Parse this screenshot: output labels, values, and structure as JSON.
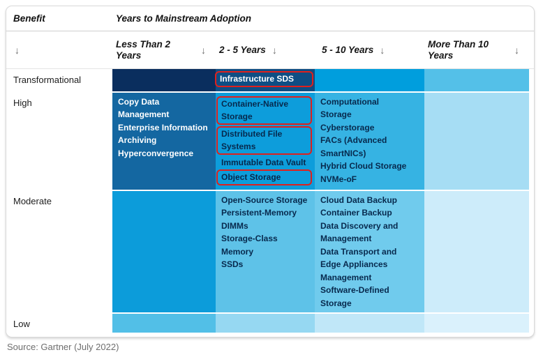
{
  "header": {
    "benefit_label": "Benefit",
    "adoption_label": "Years to Mainstream Adoption",
    "benefit_arrow": "↓"
  },
  "matrix": {
    "columns": [
      {
        "label": "Less Than 2 Years",
        "arrow": "↓"
      },
      {
        "label": "2 - 5 Years",
        "arrow": "↓"
      },
      {
        "label": "5 - 10 Years",
        "arrow": "↓"
      },
      {
        "label": "More Than 10 Years",
        "arrow": "↓"
      }
    ],
    "rows": [
      {
        "id": "transformational",
        "label": "Transformational",
        "cells": [
          {
            "bg": "#0a2e5e",
            "text_color": "#ffffff",
            "items": []
          },
          {
            "bg": "#0e4e84",
            "text_color": "#ffffff",
            "items": [
              {
                "text": "Infrastructure SDS",
                "boxed": true
              }
            ]
          },
          {
            "bg": "#009edd",
            "text_color": "#07294d",
            "items": []
          },
          {
            "bg": "#54c0e8",
            "text_color": "#07294d",
            "items": []
          }
        ]
      },
      {
        "id": "high",
        "label": "High",
        "cells": [
          {
            "bg": "#1467a1",
            "text_color": "#ffffff",
            "items": [
              {
                "text": "Copy Data\nManagement"
              },
              {
                "text": "Enterprise Information\nArchiving"
              },
              {
                "text": "Hyperconvergence"
              }
            ]
          },
          {
            "bg": "#0d9ddb",
            "text_color": "#07294d",
            "items": [
              {
                "text": "Container-Native\nStorage",
                "boxed": true
              },
              {
                "text": "Distributed File\nSystems",
                "boxed": true
              },
              {
                "text": "Immutable Data Vault"
              },
              {
                "text": "Object Storage",
                "boxed": true
              }
            ]
          },
          {
            "bg": "#36b3e3",
            "text_color": "#07294d",
            "items": [
              {
                "text": "Computational\nStorage"
              },
              {
                "text": "Cyberstorage"
              },
              {
                "text": "FACs (Advanced\nSmartNICs)"
              },
              {
                "text": "Hybrid Cloud Storage"
              },
              {
                "text": "NVMe-oF"
              }
            ]
          },
          {
            "bg": "#a6ddf4",
            "text_color": "#07294d",
            "items": []
          }
        ]
      },
      {
        "id": "moderate",
        "label": "Moderate",
        "cells": [
          {
            "bg": "#0c9cda",
            "text_color": "#ffffff",
            "items": []
          },
          {
            "bg": "#5ec2e8",
            "text_color": "#07294d",
            "items": [
              {
                "text": "Open-Source Storage"
              },
              {
                "text": "Persistent-Memory\nDIMMs"
              },
              {
                "text": "Storage-Class Memory\nSSDs"
              }
            ]
          },
          {
            "bg": "#70cbed",
            "text_color": "#07294d",
            "items": [
              {
                "text": "Cloud Data Backup"
              },
              {
                "text": "Container Backup"
              },
              {
                "text": "Data Discovery and\nManagement"
              },
              {
                "text": "Data Transport and\nEdge Appliances\nManagement"
              },
              {
                "text": "Software-Defined\nStorage"
              }
            ]
          },
          {
            "bg": "#cdecfa",
            "text_color": "#07294d",
            "items": []
          }
        ]
      },
      {
        "id": "low",
        "label": "Low",
        "cells": [
          {
            "bg": "#52bfe7",
            "text_color": "#07294d",
            "items": []
          },
          {
            "bg": "#96d8f2",
            "text_color": "#07294d",
            "items": []
          },
          {
            "bg": "#c0e7f8",
            "text_color": "#07294d",
            "items": []
          },
          {
            "bg": "#daf1fc",
            "text_color": "#07294d",
            "items": []
          }
        ]
      }
    ],
    "highlight_color": "#e0201c"
  },
  "source": "Source: Gartner (July 2022)",
  "chart_data": {
    "type": "table",
    "title": "Years to Mainstream Adoption",
    "row_header": "Benefit",
    "columns": [
      "Less Than 2 Years",
      "2 - 5 Years",
      "5 - 10 Years",
      "More Than 10 Years"
    ],
    "rows": [
      {
        "benefit": "Transformational",
        "cells": [
          [],
          [
            "Infrastructure SDS"
          ],
          [],
          []
        ]
      },
      {
        "benefit": "High",
        "cells": [
          [
            "Copy Data Management",
            "Enterprise Information Archiving",
            "Hyperconvergence"
          ],
          [
            "Container-Native Storage",
            "Distributed File Systems",
            "Immutable Data Vault",
            "Object Storage"
          ],
          [
            "Computational Storage",
            "Cyberstorage",
            "FACs (Advanced SmartNICs)",
            "Hybrid Cloud Storage",
            "NVMe-oF"
          ],
          []
        ]
      },
      {
        "benefit": "Moderate",
        "cells": [
          [],
          [
            "Open-Source Storage",
            "Persistent-Memory DIMMs",
            "Storage-Class Memory SSDs"
          ],
          [
            "Cloud Data Backup",
            "Container Backup",
            "Data Discovery and Management",
            "Data Transport and Edge Appliances Management",
            "Software-Defined Storage"
          ],
          []
        ]
      },
      {
        "benefit": "Low",
        "cells": [
          [],
          [],
          [],
          []
        ]
      }
    ],
    "highlighted_items": [
      "Infrastructure SDS",
      "Container-Native Storage",
      "Distributed File Systems",
      "Object Storage"
    ],
    "legend_position": "none",
    "grid": false
  }
}
